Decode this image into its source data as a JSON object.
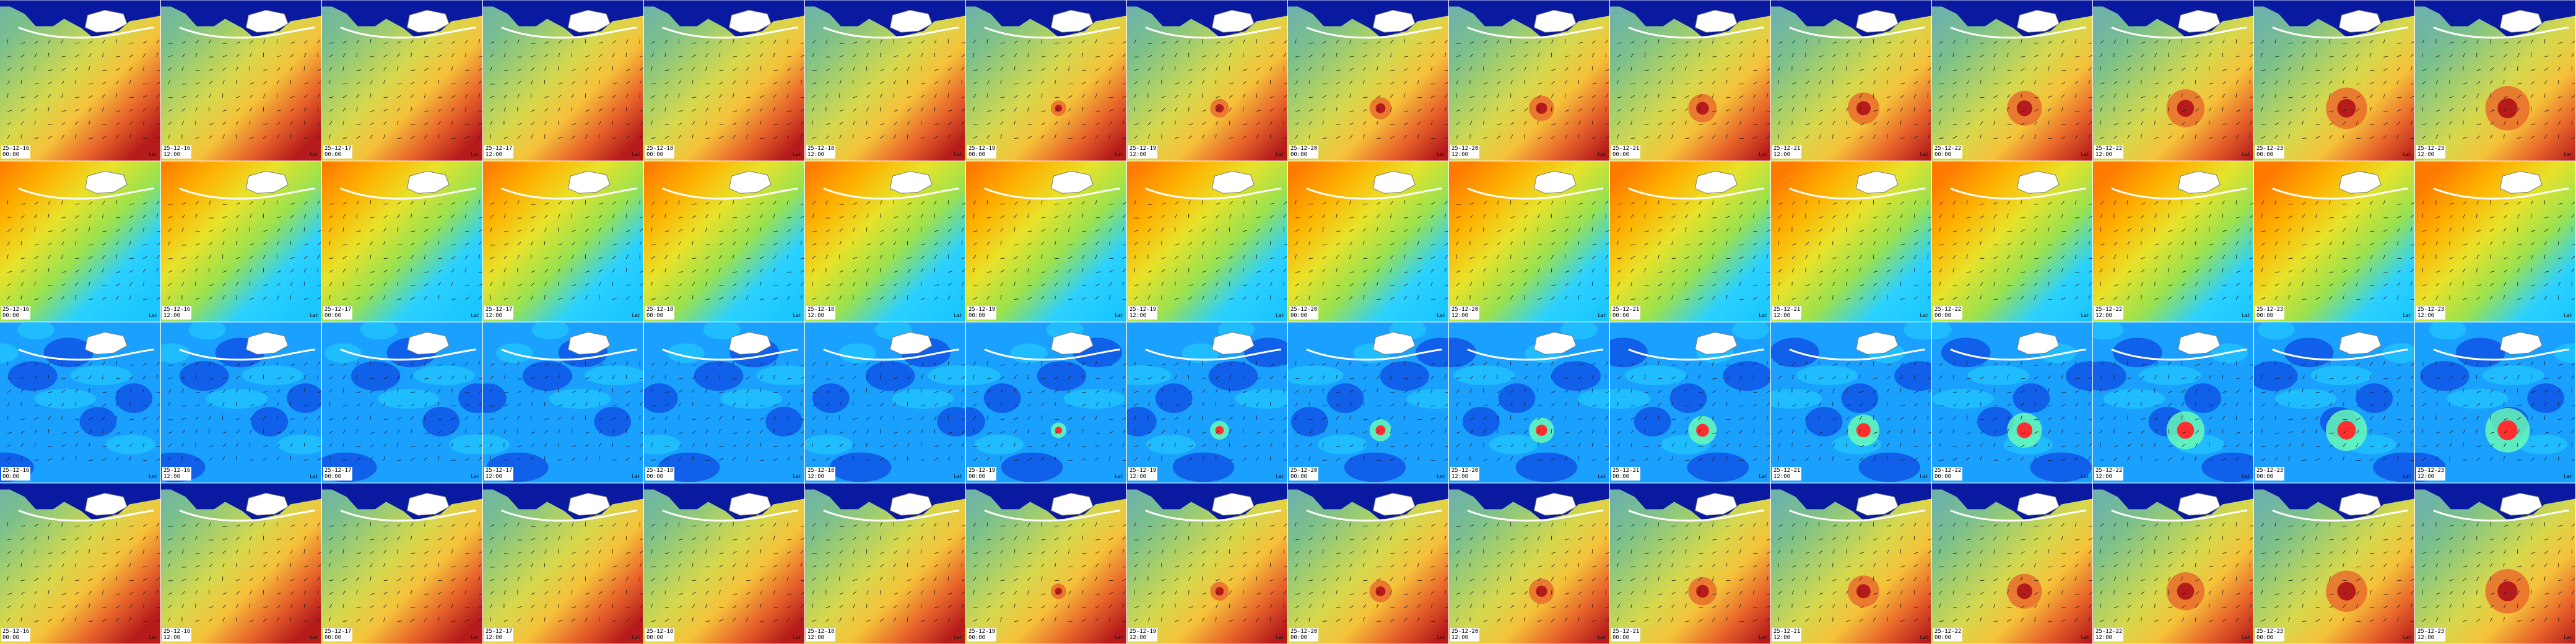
{
  "rows": [
    {
      "layer": "pressure",
      "palette": [
        "#6fb3a8",
        "#7cc08c",
        "#a7cf6a",
        "#d7d84d",
        "#f5c23a",
        "#e9662b",
        "#b51b1b"
      ]
    },
    {
      "layer": "temperature",
      "palette": [
        "#ff7a00",
        "#ffb000",
        "#e8e22a",
        "#9ae24f",
        "#2bd1ff",
        "#1bc6ff"
      ]
    },
    {
      "layer": "wind",
      "palette": [
        "#0b2bd8",
        "#1358ff",
        "#1aa0ff",
        "#25d6ff",
        "#6cffb1",
        "#ff2f2f"
      ]
    },
    {
      "layer": "pressure",
      "palette": [
        "#6fb3a8",
        "#7cc08c",
        "#a7cf6a",
        "#d7d84d",
        "#f5c23a",
        "#e9662b",
        "#b51b1b"
      ]
    }
  ],
  "panels": [
    {
      "date": "25-12-16",
      "time": "00:00",
      "label": "Lat"
    },
    {
      "date": "25-12-16",
      "time": "12:00",
      "label": "Lat"
    },
    {
      "date": "25-12-17",
      "time": "00:00",
      "label": "Lat"
    },
    {
      "date": "25-12-17",
      "time": "12:00",
      "label": "Lat"
    },
    {
      "date": "25-12-18",
      "time": "00:00",
      "label": "Lat"
    },
    {
      "date": "25-12-18",
      "time": "12:00",
      "label": "Lat"
    },
    {
      "date": "25-12-19",
      "time": "00:00",
      "label": "Lat"
    },
    {
      "date": "25-12-19",
      "time": "12:00",
      "label": "Lat"
    },
    {
      "date": "25-12-20",
      "time": "00:00",
      "label": "Lat"
    },
    {
      "date": "25-12-20",
      "time": "12:00",
      "label": "Lat"
    },
    {
      "date": "25-12-21",
      "time": "00:00",
      "label": "Lat"
    },
    {
      "date": "25-12-21",
      "time": "12:00",
      "label": "Lat"
    },
    {
      "date": "25-12-22",
      "time": "00:00",
      "label": "Lat"
    },
    {
      "date": "25-12-22",
      "time": "12:00",
      "label": "Lat"
    },
    {
      "date": "25-12-23",
      "time": "00:00",
      "label": "Lat"
    },
    {
      "date": "25-12-23",
      "time": "12:00",
      "label": "Lat"
    }
  ],
  "colors": {
    "land": "#ffffff",
    "sea_dark": "#0a1aa0",
    "coast": "#7a7a7a"
  }
}
